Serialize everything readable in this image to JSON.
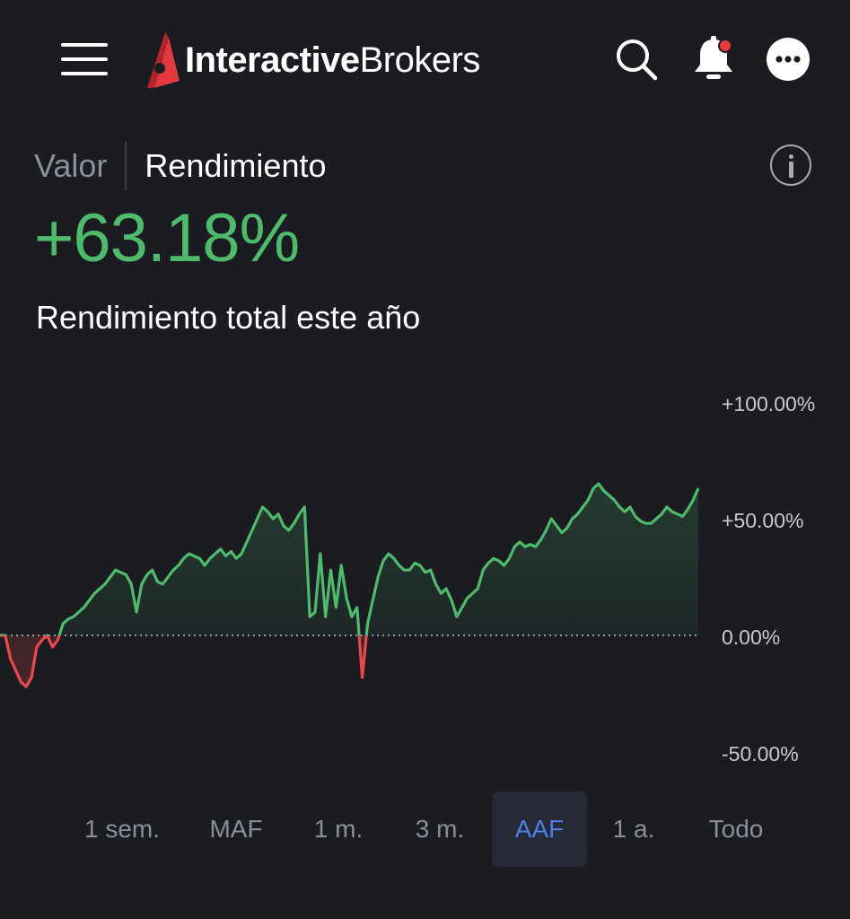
{
  "header": {
    "logo_bold": "Interactive",
    "logo_light": "Brokers",
    "icons": [
      "menu-icon",
      "search-icon",
      "bell-icon",
      "more-icon"
    ],
    "notification_dot_color": "#e8393b"
  },
  "toggle": {
    "value_label": "Valor",
    "return_label": "Rendimiento",
    "selected": "Rendimiento"
  },
  "summary": {
    "value": "+63.18%",
    "label": "Rendimiento total este año"
  },
  "colors": {
    "positive": "#4fba6b",
    "negative": "#e8494d",
    "accent": "#4f7fe6",
    "background": "#1a1c22"
  },
  "periods": {
    "items": [
      "1 sem.",
      "MAF",
      "1 m.",
      "3 m.",
      "AAF",
      "1 a.",
      "Todo"
    ],
    "active": "AAF"
  },
  "chart_data": {
    "type": "line",
    "ylim": [
      -50,
      100
    ],
    "yticks": [
      "+100.00%",
      "+50.00%",
      "0.00%",
      "-50.00%"
    ],
    "baseline": 0,
    "values": [
      0,
      0,
      -10,
      -15,
      -20,
      -22,
      -18,
      -5,
      -2,
      0,
      -5,
      -2,
      5,
      7,
      8,
      10,
      12,
      15,
      18,
      20,
      22,
      25,
      28,
      27,
      26,
      22,
      10,
      22,
      26,
      28,
      23,
      22,
      25,
      28,
      30,
      33,
      35,
      34,
      33,
      30,
      33,
      35,
      37,
      34,
      36,
      33,
      35,
      40,
      45,
      50,
      55,
      53,
      50,
      52,
      47,
      45,
      48,
      52,
      55,
      8,
      10,
      35,
      8,
      28,
      12,
      30,
      16,
      8,
      12,
      -18,
      5,
      15,
      25,
      32,
      35,
      33,
      30,
      28,
      28,
      31,
      30,
      27,
      28,
      22,
      18,
      20,
      15,
      8,
      12,
      16,
      18,
      20,
      28,
      31,
      33,
      32,
      30,
      33,
      38,
      40,
      38,
      39,
      38,
      41,
      45,
      50,
      47,
      44,
      46,
      50,
      52,
      55,
      58,
      63,
      65,
      62,
      60,
      58,
      55,
      53,
      55,
      51,
      49,
      48,
      48,
      50,
      52,
      55,
      53,
      52,
      51,
      54,
      58,
      63
    ]
  }
}
